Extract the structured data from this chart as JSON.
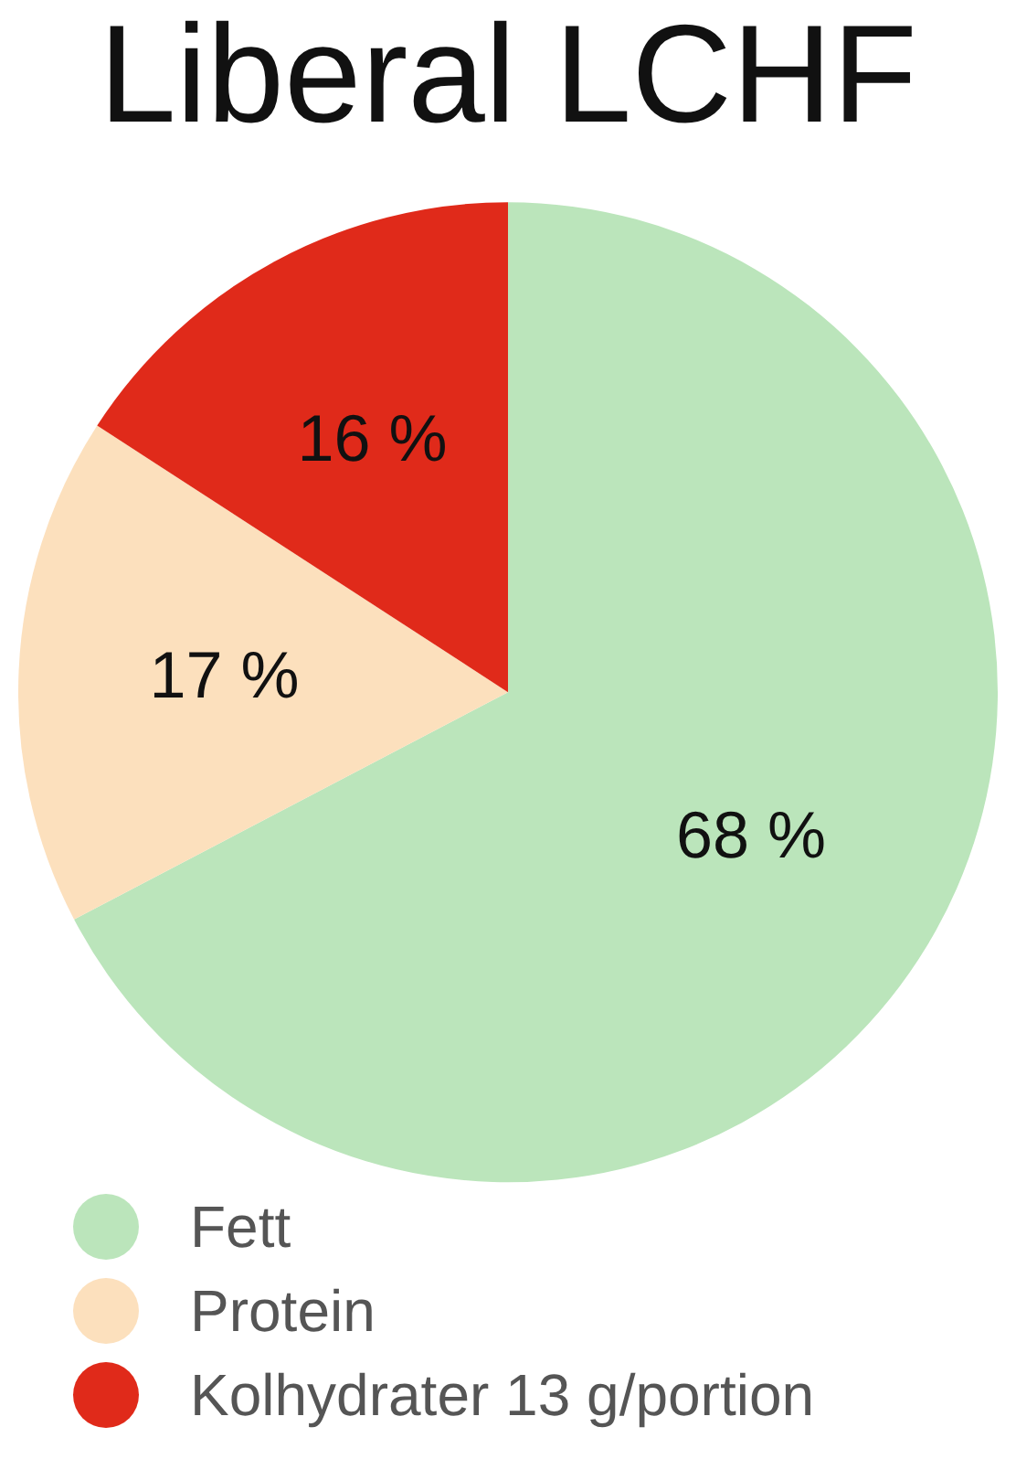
{
  "chart_data": {
    "type": "pie",
    "title": "Liberal LCHF",
    "categories": [
      "Fett",
      "Protein",
      "Kolhydrater 13 g/portion"
    ],
    "values": [
      68,
      17,
      16
    ],
    "colors": [
      "#bbe5bb",
      "#fce0bd",
      "#e02a1a"
    ],
    "value_labels": [
      "68 %",
      "17 %",
      "16 %"
    ],
    "legend": "bottom"
  }
}
